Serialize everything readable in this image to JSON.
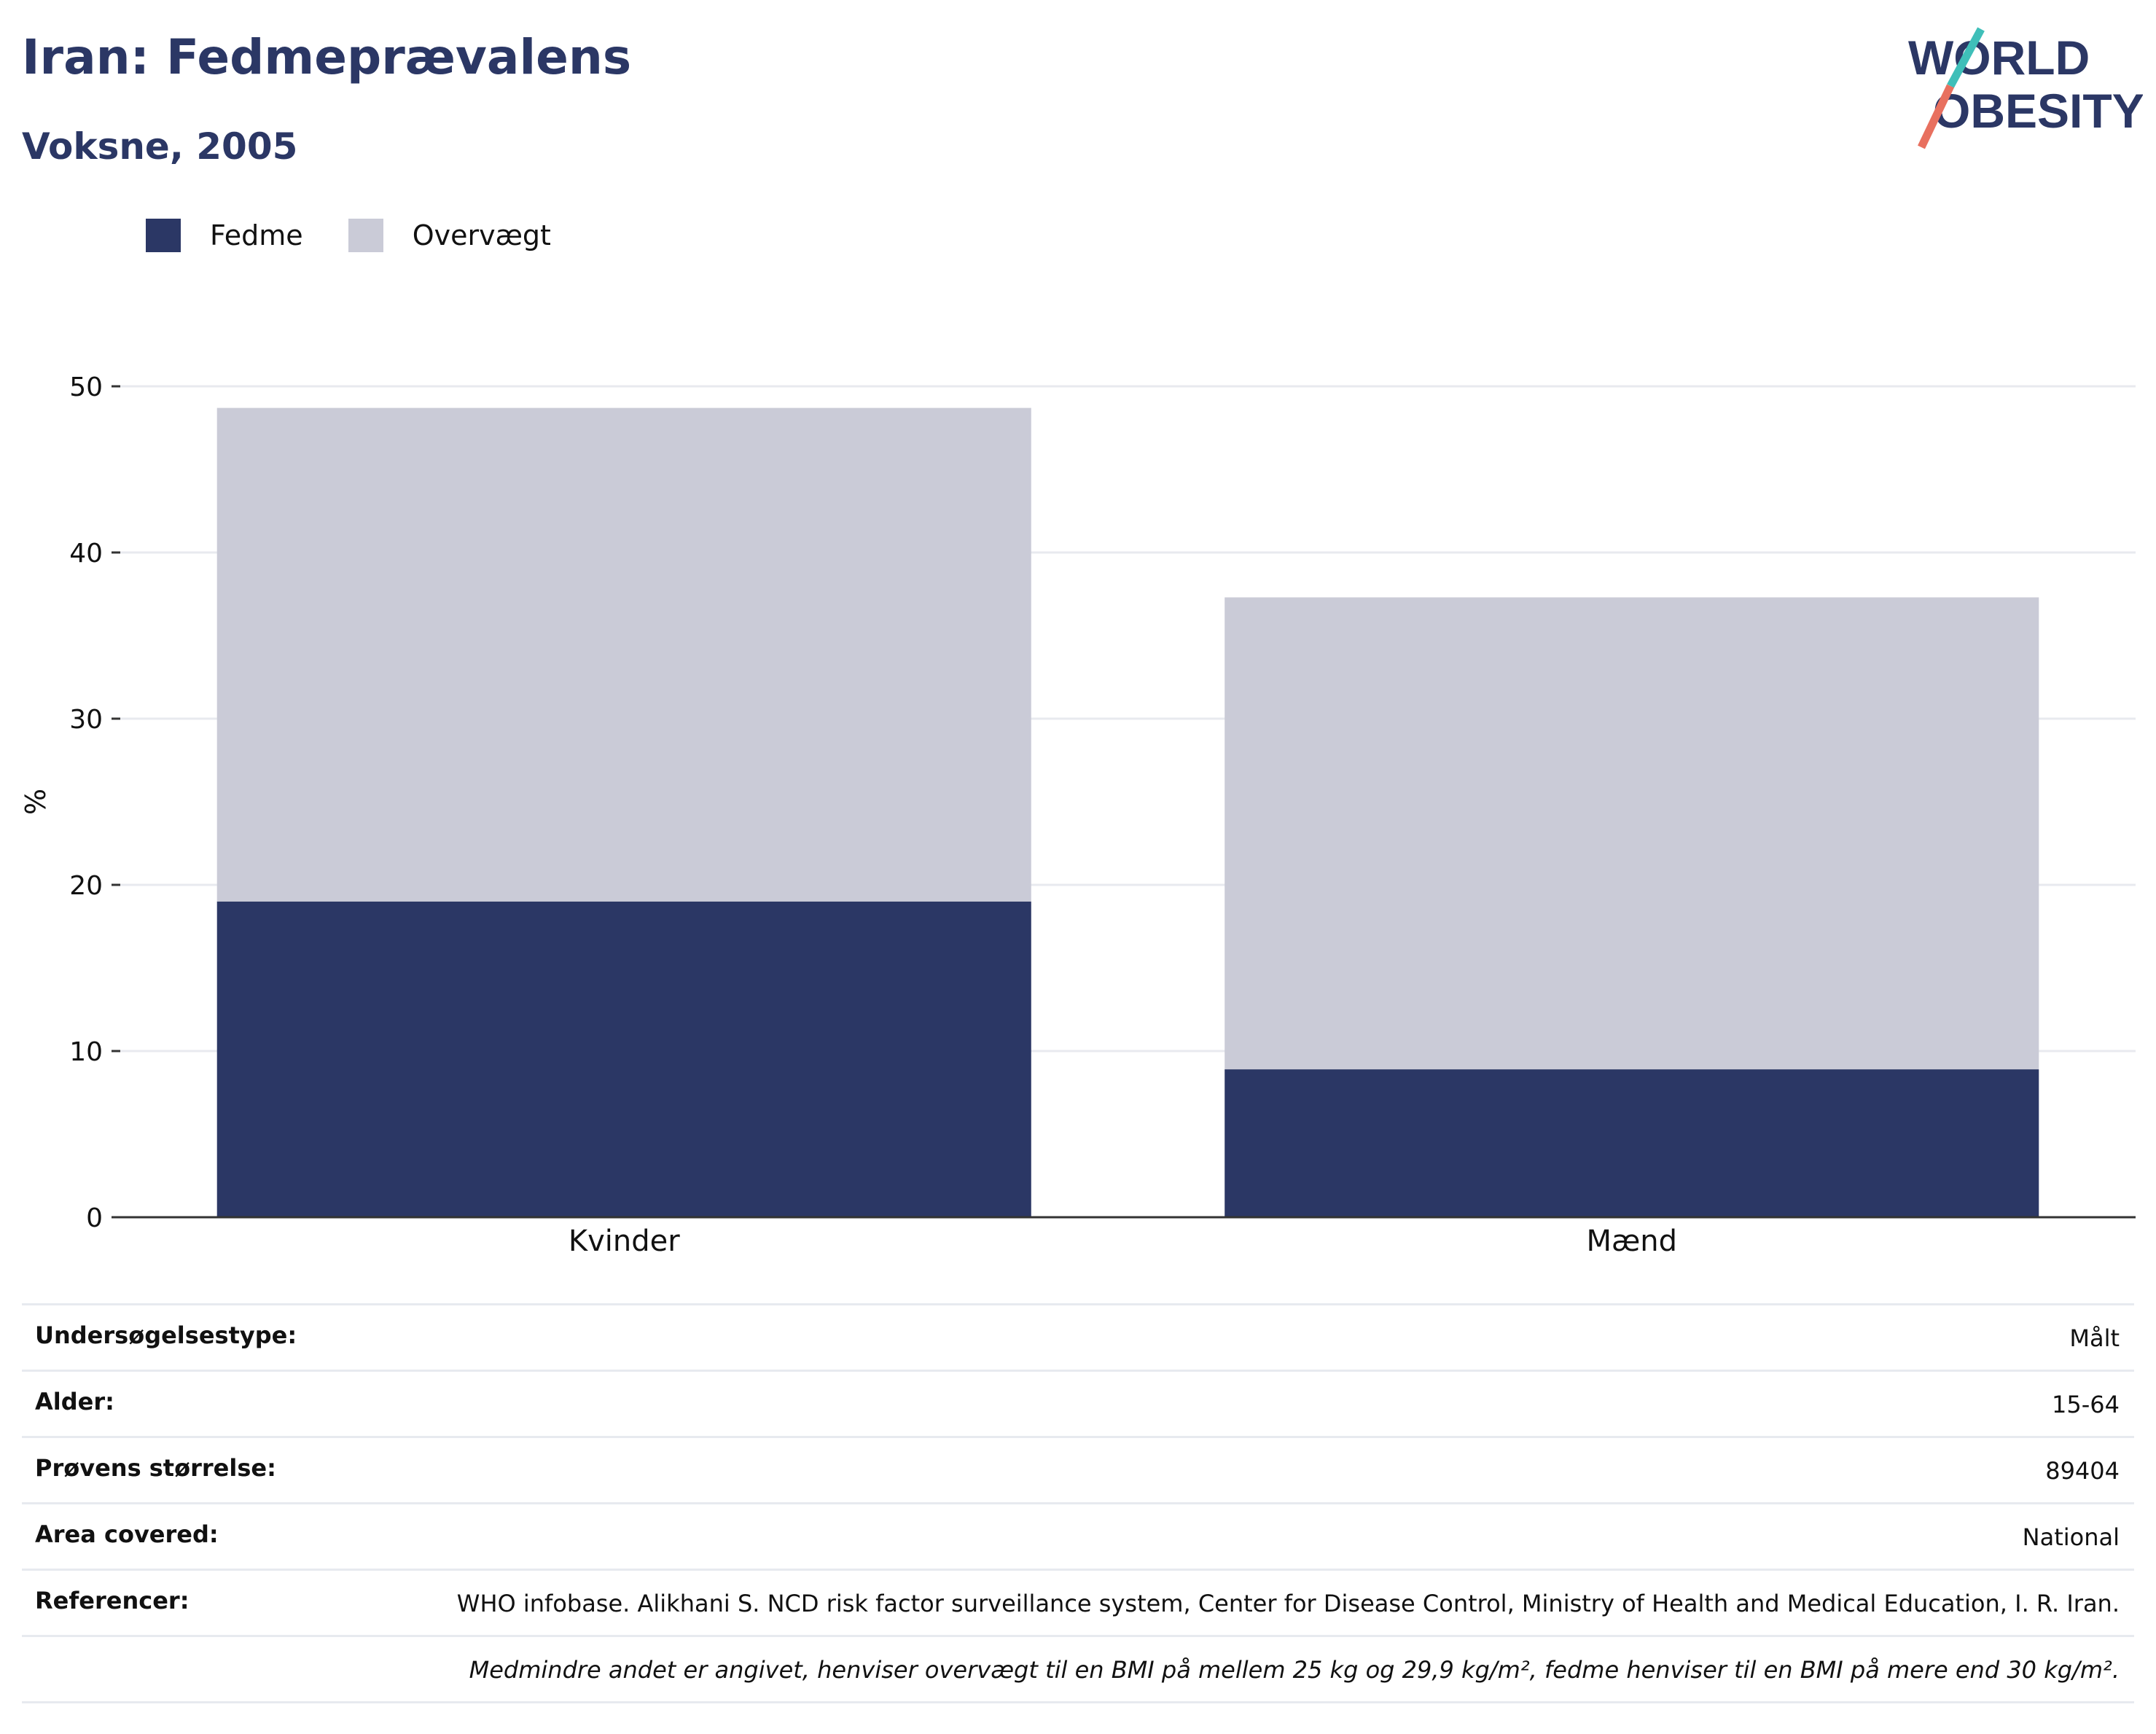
{
  "header": {
    "title": "Iran: Fedmeprævalens",
    "subtitle": "Voksne, 2005",
    "logo_line1": "WORLD",
    "logo_line2": "OBESITY"
  },
  "colors": {
    "fedme": "#2b3765",
    "overvaegt": "#cacbd7",
    "title": "#2b3765",
    "logo_teal": "#3fbfb9",
    "logo_coral": "#e8705f"
  },
  "chart_data": {
    "type": "bar",
    "stacked": true,
    "categories": [
      "Kvinder",
      "Mænd"
    ],
    "series": [
      {
        "name": "Fedme",
        "values": [
          19.0,
          8.9
        ]
      },
      {
        "name": "Overvægt",
        "values": [
          29.7,
          28.4
        ]
      }
    ],
    "ylabel": "%",
    "ylim": [
      0,
      50
    ],
    "yticks": [
      0,
      10,
      20,
      30,
      40,
      50
    ],
    "grid": true,
    "legend_position": "top-left"
  },
  "meta": {
    "rows": [
      {
        "label": "Undersøgelsestype:",
        "value": "Målt"
      },
      {
        "label": "Alder:",
        "value": "15-64"
      },
      {
        "label": "Prøvens størrelse:",
        "value": "89404"
      },
      {
        "label": "Area covered:",
        "value": "National"
      },
      {
        "label": "Referencer:",
        "value": "WHO infobase. Alikhani S. NCD risk factor surveillance system, Center for Disease Control, Ministry of Health and Medical Education, I. R. Iran."
      }
    ],
    "note": "Medmindre andet er angivet, henviser overvægt til en BMI på mellem 25 kg og 29,9 kg/m², fedme henviser til en BMI på mere end 30 kg/m²."
  }
}
